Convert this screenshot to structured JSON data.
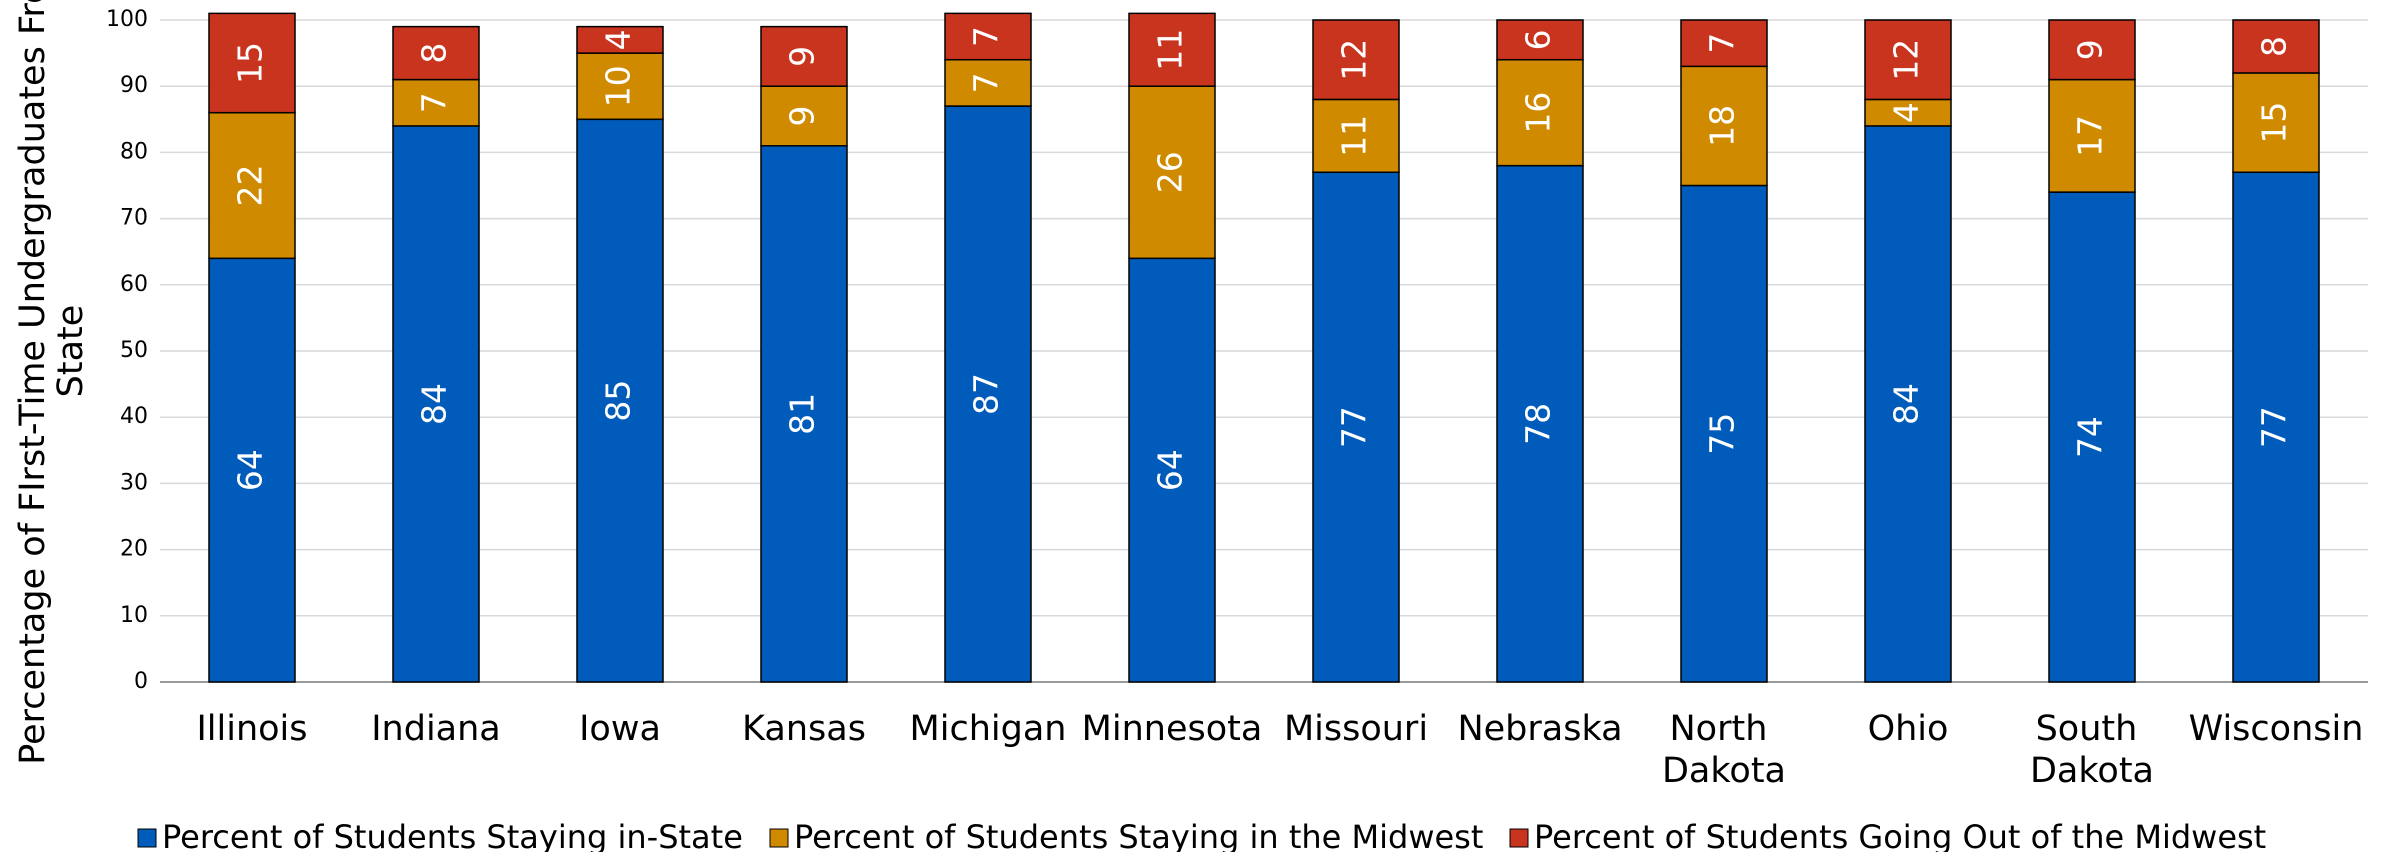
{
  "chart_data": {
    "type": "stacked_bar",
    "y_label": "Percentage of FIrst-Time Undergraduates From State",
    "categories": [
      "Illinois",
      "Indiana",
      "Iowa",
      "Kansas",
      "Michigan",
      "Minnesota",
      "Missouri",
      "Nebraska",
      "North Dakota",
      "Ohio",
      "South Dakota",
      "Wisconsin"
    ],
    "series": [
      {
        "name": "Percent of Students Staying in-State",
        "color": "#005bbb",
        "values": [
          64,
          84,
          85,
          81,
          87,
          64,
          77,
          78,
          75,
          84,
          74,
          77
        ]
      },
      {
        "name": "Percent of Students Staying in the Midwest",
        "color": "#d08a00",
        "values": [
          22,
          7,
          10,
          9,
          7,
          26,
          11,
          16,
          18,
          4,
          17,
          15
        ]
      },
      {
        "name": "Percent of Students Going Out of the Midwest",
        "color": "#c9341f",
        "values": [
          15,
          8,
          4,
          9,
          7,
          11,
          12,
          6,
          7,
          12,
          9,
          8
        ]
      }
    ],
    "ylim": [
      0,
      100
    ],
    "yticks": [
      0,
      10,
      20,
      30,
      40,
      50,
      60,
      70,
      80,
      90,
      100
    ],
    "grid": true,
    "legend": "bottom"
  }
}
